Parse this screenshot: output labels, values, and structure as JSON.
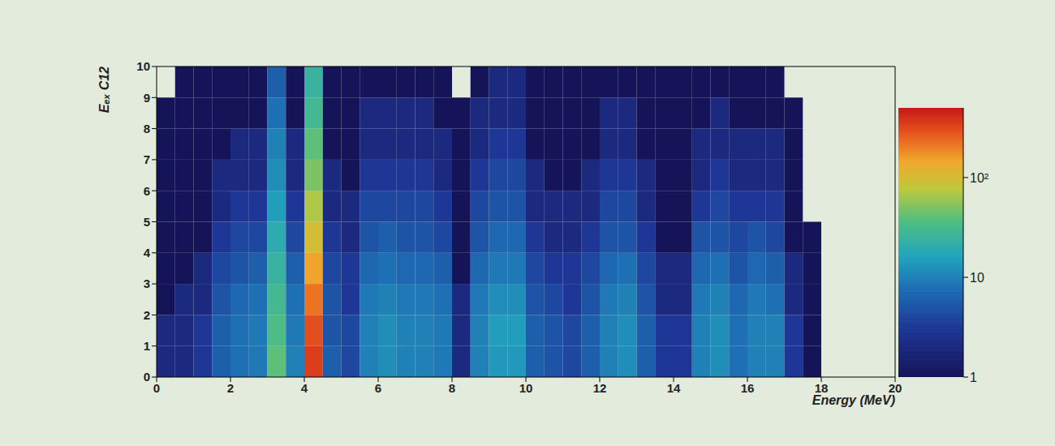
{
  "chart_data": {
    "type": "heatmap",
    "x_label": "Energy (MeV)",
    "y_label": "Eₑₓ C12",
    "xlim": [
      0,
      20
    ],
    "xticks": [
      0,
      2,
      4,
      6,
      8,
      10,
      12,
      14,
      16,
      18,
      20
    ],
    "ylim": [
      0,
      10
    ],
    "yticks": [
      0,
      1,
      2,
      3,
      4,
      5,
      6,
      7,
      8,
      9,
      10
    ],
    "x_bins": [
      0,
      0.5,
      1,
      1.5,
      2,
      2.5,
      3,
      3.5,
      4,
      4.5,
      5,
      5.5,
      6,
      6.5,
      7,
      7.5,
      8,
      8.5,
      9,
      9.5,
      10,
      10.5,
      11,
      11.5,
      12,
      12.5,
      13,
      13.5,
      14,
      14.5,
      15,
      15.5,
      16,
      16.5,
      17,
      17.5,
      18,
      18.5,
      19,
      19.5,
      20
    ],
    "y_bins": [
      0,
      1,
      2,
      3,
      4,
      5,
      6,
      7,
      8,
      9,
      10
    ],
    "cells": [
      [
        2,
        2,
        3,
        6,
        8,
        9,
        40,
        10,
        350,
        6,
        4,
        10,
        12,
        10,
        10,
        9,
        2,
        10,
        14,
        14,
        6,
        5,
        4,
        6,
        10,
        12,
        6,
        3,
        3,
        10,
        12,
        8,
        10,
        10,
        3,
        1,
        0,
        0,
        0,
        0
      ],
      [
        2,
        2,
        3,
        6,
        8,
        9,
        35,
        9,
        300,
        5,
        4,
        10,
        12,
        10,
        10,
        9,
        2,
        10,
        15,
        15,
        6,
        5,
        4,
        6,
        10,
        12,
        6,
        3,
        3,
        10,
        12,
        8,
        10,
        10,
        3,
        1,
        0,
        0,
        0,
        0
      ],
      [
        1,
        2,
        2,
        5,
        7,
        8,
        30,
        8,
        220,
        5,
        3,
        9,
        10,
        9,
        9,
        8,
        2,
        9,
        12,
        12,
        5,
        4,
        3,
        5,
        9,
        10,
        5,
        2,
        2,
        9,
        10,
        7,
        9,
        8,
        2,
        1,
        0,
        0,
        0,
        0
      ],
      [
        1,
        1,
        2,
        4,
        5,
        6,
        25,
        6,
        150,
        4,
        3,
        7,
        8,
        7,
        7,
        6,
        1,
        7,
        9,
        9,
        4,
        3,
        3,
        4,
        7,
        8,
        4,
        2,
        2,
        7,
        8,
        5,
        7,
        6,
        2,
        1,
        0,
        0,
        0,
        0
      ],
      [
        1,
        1,
        1,
        3,
        4,
        4,
        20,
        4,
        100,
        3,
        2,
        5,
        6,
        5,
        5,
        4,
        1,
        5,
        7,
        7,
        3,
        2,
        2,
        3,
        5,
        5,
        3,
        1,
        1,
        5,
        5,
        4,
        5,
        4,
        1,
        1,
        0,
        0,
        0,
        0
      ],
      [
        1,
        1,
        1,
        2,
        3,
        3,
        15,
        3,
        70,
        2,
        2,
        4,
        4,
        4,
        4,
        3,
        1,
        4,
        5,
        5,
        2,
        2,
        2,
        2,
        4,
        4,
        2,
        1,
        1,
        3,
        4,
        3,
        3,
        3,
        1,
        0,
        0,
        0,
        0,
        0
      ],
      [
        1,
        1,
        1,
        2,
        2,
        2,
        12,
        2,
        50,
        2,
        1,
        3,
        3,
        3,
        3,
        2,
        1,
        3,
        4,
        4,
        2,
        1,
        1,
        2,
        3,
        3,
        2,
        1,
        1,
        2,
        3,
        2,
        2,
        2,
        1,
        0,
        0,
        0,
        0,
        0
      ],
      [
        1,
        1,
        1,
        1,
        2,
        2,
        10,
        2,
        40,
        1,
        1,
        2,
        2,
        2,
        2,
        2,
        1,
        2,
        3,
        3,
        1,
        1,
        1,
        1,
        2,
        2,
        1,
        1,
        1,
        2,
        2,
        2,
        2,
        2,
        1,
        0,
        0,
        0,
        0,
        0
      ],
      [
        1,
        1,
        1,
        1,
        1,
        1,
        8,
        1,
        30,
        1,
        1,
        2,
        2,
        2,
        2,
        1,
        1,
        2,
        2,
        2,
        1,
        1,
        1,
        1,
        2,
        2,
        1,
        1,
        1,
        1,
        2,
        1,
        1,
        1,
        1,
        0,
        0,
        0,
        0,
        0
      ],
      [
        0,
        1,
        1,
        1,
        1,
        1,
        6,
        1,
        25,
        1,
        1,
        1,
        1,
        1,
        1,
        1,
        0,
        1,
        2,
        2,
        1,
        1,
        1,
        1,
        1,
        1,
        1,
        1,
        1,
        1,
        1,
        1,
        1,
        1,
        0,
        0,
        0,
        0,
        0,
        0
      ]
    ],
    "colorbar": {
      "range": [
        1,
        500
      ],
      "ticks": [
        1,
        10,
        {
          "value": 100,
          "label": "10²"
        }
      ]
    }
  }
}
